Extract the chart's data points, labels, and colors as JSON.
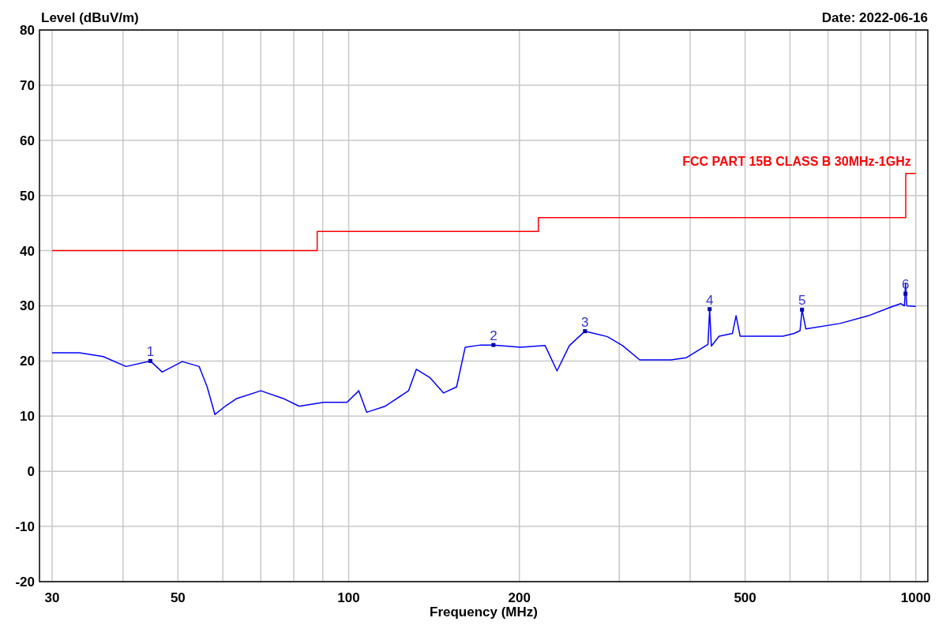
{
  "chart_data": {
    "type": "line",
    "xlabel": "Frequency (MHz)",
    "ylabel": "Level (dBuV/m)",
    "log": "x",
    "grid": true,
    "marker": "none",
    "line_style": "solid",
    "legend": false,
    "xlim": [
      28.5,
      1050
    ],
    "ylim": [
      -20,
      80
    ],
    "xticks": [
      30,
      {
        "value": 40,
        "label": null
      },
      50,
      {
        "value": 60,
        "label": null
      },
      {
        "value": 70,
        "label": null
      },
      {
        "value": 80,
        "label": null
      },
      {
        "value": 90,
        "label": null
      },
      100,
      200,
      {
        "value": 300,
        "label": null
      },
      {
        "value": 400,
        "label": null
      },
      500,
      {
        "value": 600,
        "label": null
      },
      {
        "value": 700,
        "label": null
      },
      {
        "value": 800,
        "label": null
      },
      {
        "value": 900,
        "label": null
      },
      1000
    ],
    "yticks": [
      -20,
      -10,
      0,
      10,
      20,
      30,
      40,
      50,
      60,
      70,
      80
    ],
    "series": [
      {
        "color": "#0000ff",
        "x": [
          30,
          33.5,
          36.9,
          40.5,
          44.7,
          46.9,
          50.9,
          54.5,
          56.3,
          58.1,
          60.6,
          63.5,
          70,
          76.7,
          81.8,
          90.4,
          99.3,
          104.2,
          107.6,
          116,
          127.5,
          131.6,
          139,
          147,
          155,
          160.5,
          171,
          180,
          201,
          222,
          233,
          245,
          261,
          286,
          304,
          326,
          370,
          394,
          419,
          430,
          433,
          436,
          450,
          475,
          482,
          490,
          583,
          610,
          625,
          630,
          640,
          735,
          825,
          895,
          940,
          955,
          959,
          964,
          1000
        ],
        "values": [
          21.5,
          21.5,
          20.8,
          19,
          20,
          18,
          19.9,
          19,
          15.3,
          10.3,
          11.8,
          13.2,
          14.6,
          13.2,
          11.8,
          12.5,
          12.5,
          14.6,
          10.7,
          11.8,
          14.6,
          18.5,
          17,
          14.2,
          15.3,
          22.5,
          22.9,
          22.9,
          22.5,
          22.8,
          18.2,
          22.8,
          25.4,
          24.4,
          22.8,
          20.2,
          20.2,
          20.6,
          22.3,
          23,
          29.4,
          22.7,
          24.5,
          25,
          28.2,
          24.5,
          24.5,
          25,
          25.5,
          29.3,
          25.8,
          26.8,
          28.2,
          29.6,
          30.4,
          30,
          34,
          30,
          29.9
        ]
      },
      {
        "type": "step",
        "name": "FCC PART 15B CLASS B 30MHz-1GHz",
        "color": "#ff0000",
        "x": [
          30,
          88,
          216,
          960,
          1000
        ],
        "values": [
          40,
          43.5,
          46,
          54,
          54
        ]
      }
    ],
    "annotations": [
      "Date: 2022-06-16",
      {
        "text": "1",
        "x": 44.7,
        "y": 20
      },
      {
        "text": "2",
        "x": 180,
        "y": 22.9
      },
      {
        "text": "3",
        "x": 261,
        "y": 25.4
      },
      {
        "text": "4",
        "x": 433,
        "y": 29.4
      },
      {
        "text": "5",
        "x": 630,
        "y": 29.3
      },
      {
        "text": "6",
        "x": 959,
        "y": 32.2
      }
    ]
  }
}
